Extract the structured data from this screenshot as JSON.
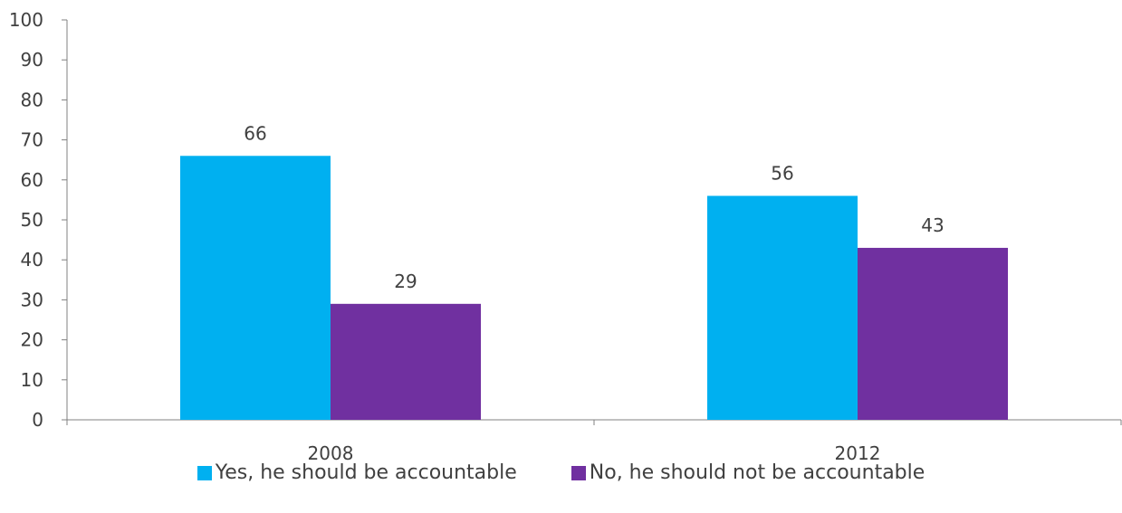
{
  "chart_data": {
    "type": "bar",
    "categories": [
      "2008",
      "2012"
    ],
    "series": [
      {
        "name": "Yes, he should be accountable",
        "values": [
          66,
          56
        ],
        "color": "#00B0F0"
      },
      {
        "name": "No, he should not be accountable",
        "values": [
          29,
          43
        ],
        "color": "#7030A0"
      }
    ],
    "ylim": [
      0,
      100
    ],
    "yticks": [
      0,
      10,
      20,
      30,
      40,
      50,
      60,
      70,
      80,
      90,
      100
    ],
    "grid": false,
    "legend_position": "bottom",
    "axis_color": "#808080",
    "text_color": "#404040"
  }
}
